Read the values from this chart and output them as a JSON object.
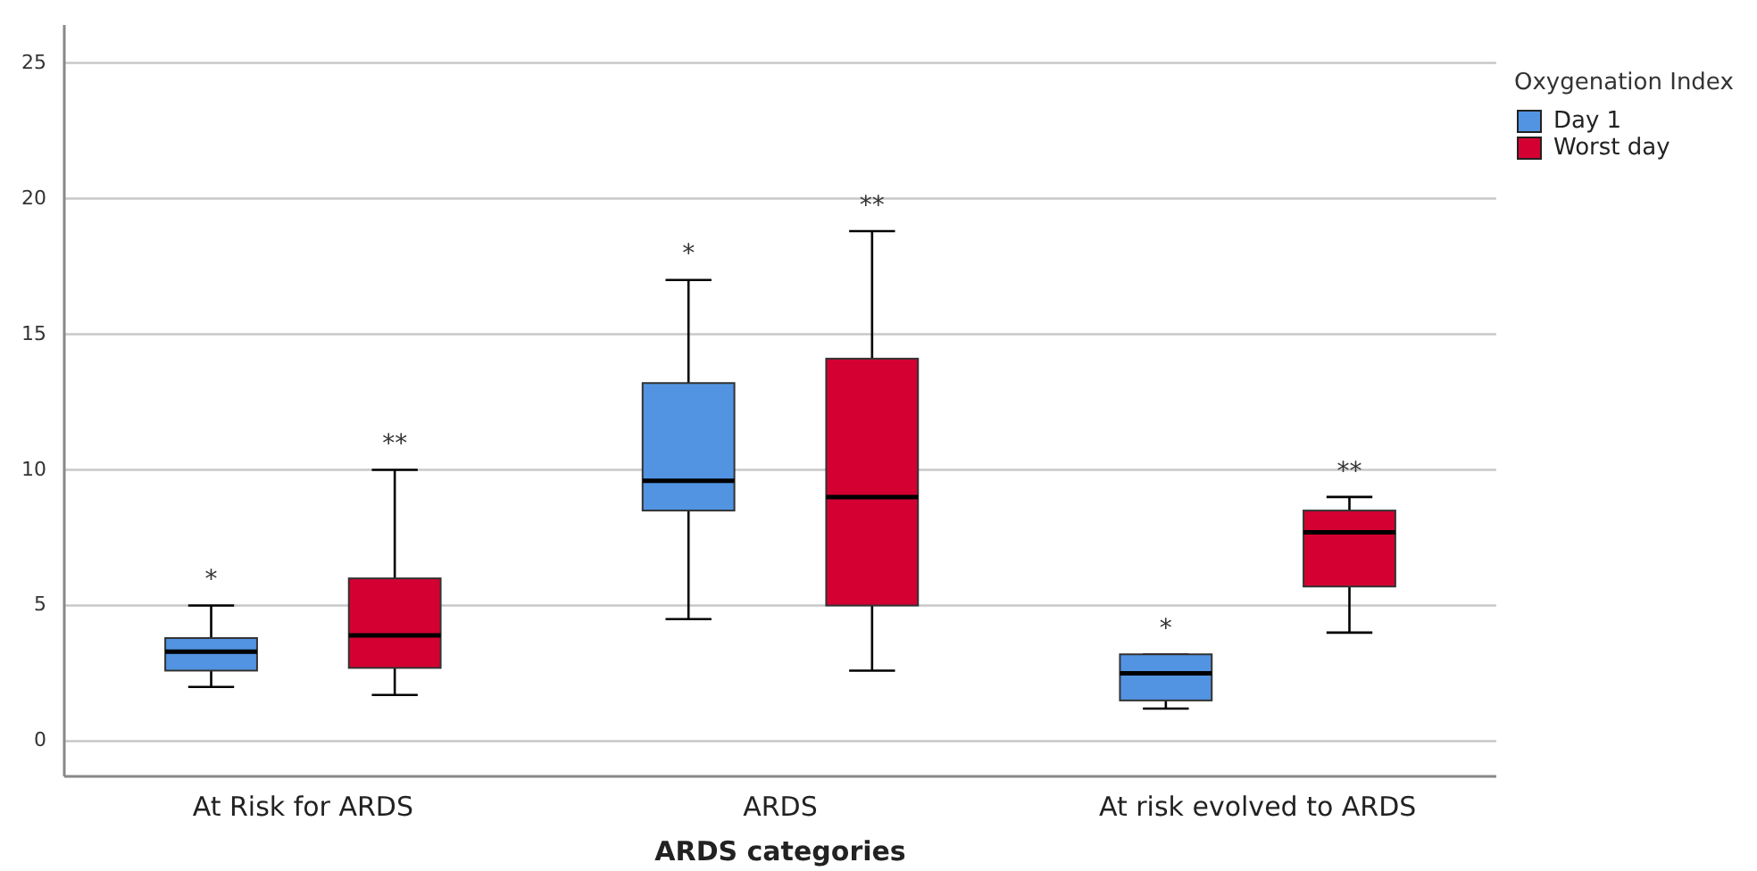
{
  "chart_data": {
    "type": "box",
    "xlabel": "ARDS categories",
    "legend_title": "Oxygenation Index",
    "legend": "top right",
    "grid": "y",
    "categories": [
      "At Risk for ARDS",
      "ARDS",
      "At risk evolved to ARDS"
    ],
    "ylim": [
      -1.3,
      26.4
    ],
    "yticks": [
      0,
      5,
      10,
      15,
      20,
      25
    ],
    "series": [
      {
        "name": "Day 1",
        "color": "#5294e2",
        "boxes": [
          {
            "low": 2.0,
            "q1": 2.6,
            "median": 3.3,
            "q3": 3.8,
            "high": 5.0
          },
          {
            "low": 4.5,
            "q1": 8.5,
            "median": 9.6,
            "q3": 13.2,
            "high": 17.0
          },
          {
            "low": 1.2,
            "q1": 1.5,
            "median": 2.5,
            "q3": 3.2,
            "high": 3.2
          }
        ]
      },
      {
        "name": "Worst day",
        "color": "#d50032",
        "boxes": [
          {
            "low": 1.7,
            "q1": 2.7,
            "median": 3.9,
            "q3": 6.0,
            "high": 10.0
          },
          {
            "low": 2.6,
            "q1": 5.0,
            "median": 9.0,
            "q3": 14.1,
            "high": 18.8
          },
          {
            "low": 4.0,
            "q1": 5.7,
            "median": 7.7,
            "q3": 8.5,
            "high": 9.0
          }
        ]
      }
    ],
    "annotations": [
      "*",
      "**",
      "*",
      "**",
      "*",
      "**"
    ]
  }
}
